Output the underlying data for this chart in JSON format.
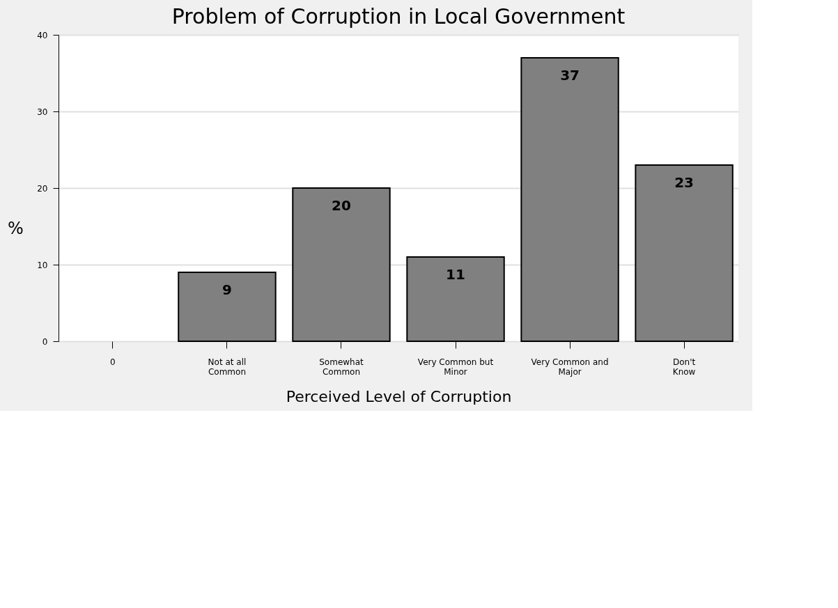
{
  "chart_data": {
    "type": "bar",
    "title": "Problem of Corruption in Local Government",
    "xlabel": "Perceived Level of Corruption",
    "ylabel": "%",
    "categories": [
      "0",
      "Not at all\nCommon",
      "Somewhat\nCommon",
      "Very Common but\nMinor",
      "Very Common and\nMajor",
      "Don't\nKnow"
    ],
    "values": [
      null,
      9,
      20,
      11,
      37,
      23
    ],
    "color": "#808080",
    "data_labels": true,
    "ylim": [
      0,
      40
    ],
    "yticks": [
      0,
      10,
      20,
      30,
      40
    ],
    "grid": "y"
  }
}
